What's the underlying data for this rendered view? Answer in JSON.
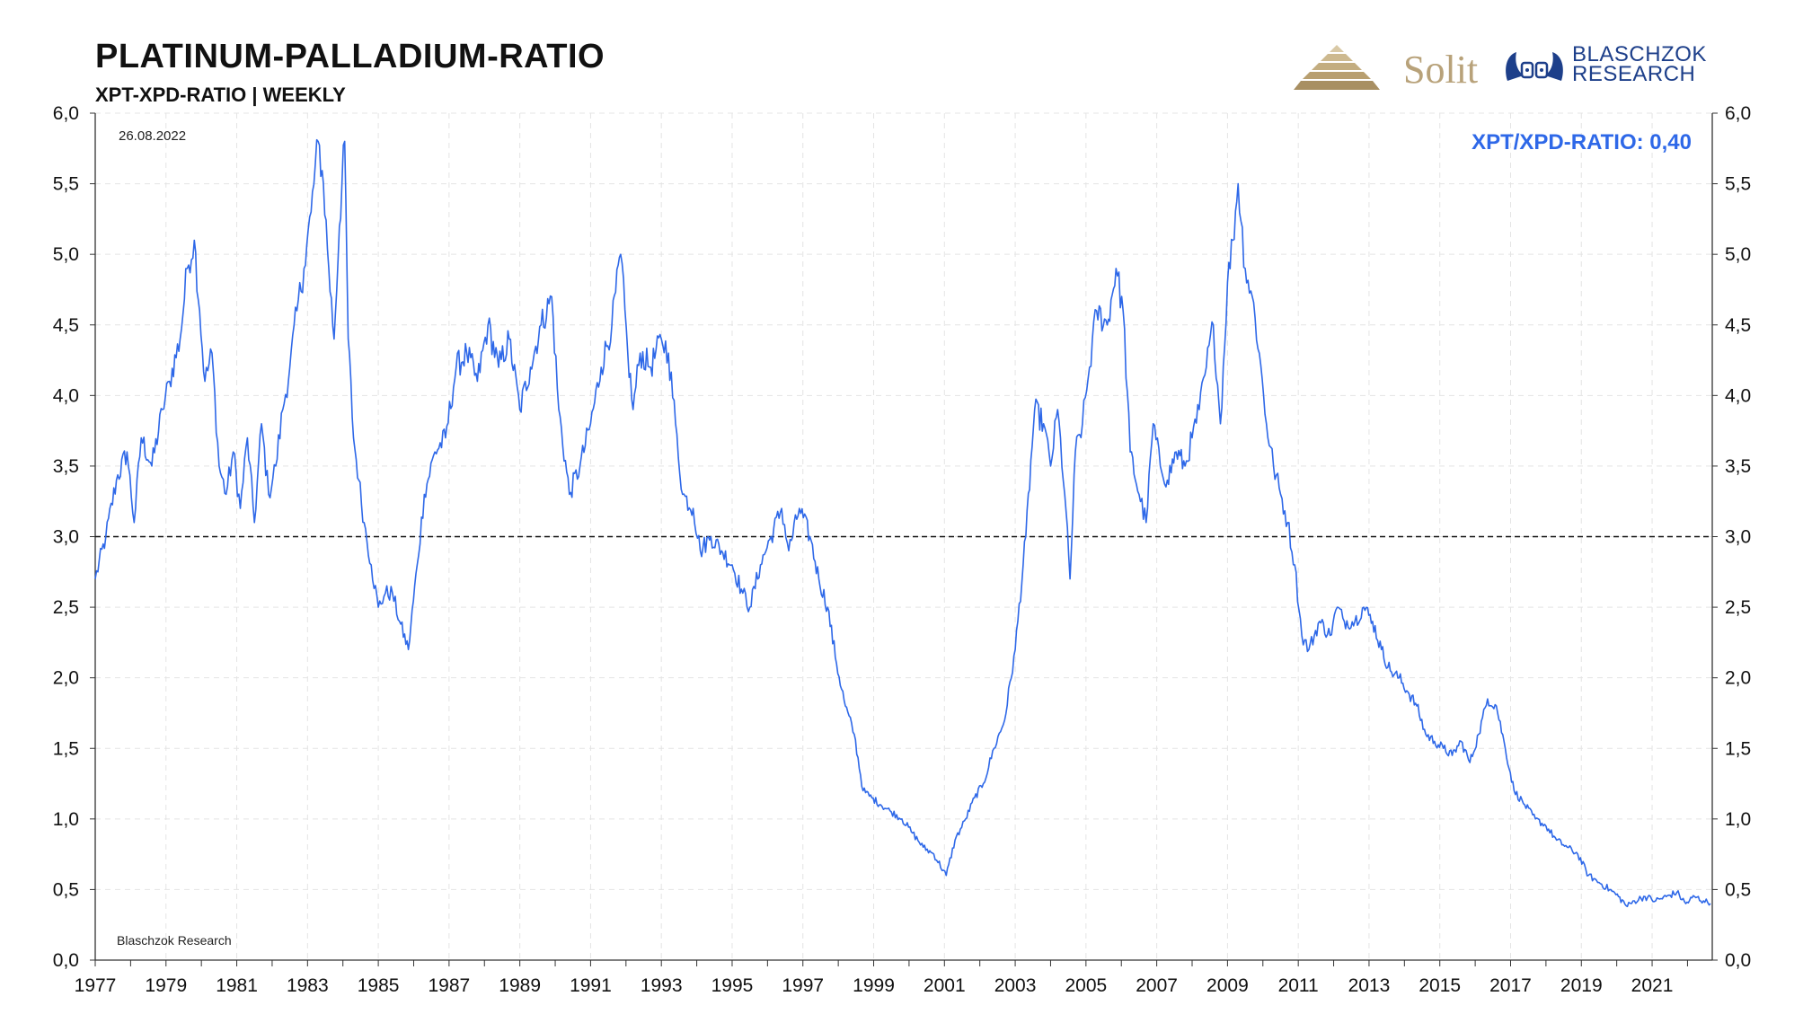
{
  "header": {
    "title": "PLATINUM-PALLADIUM-RATIO",
    "subtitle": "XPT-XPD-RATIO | WEEKLY"
  },
  "logos": {
    "solit": "Solit",
    "blaschzok_line1": "BLASCHZOK",
    "blaschzok_line2": "RESEARCH"
  },
  "annotations": {
    "date": "26.08.2022",
    "current_value": "XPT/XPD-RATIO: 0,40",
    "source": "Blaschzok Research"
  },
  "colors": {
    "line": "#2e68e8",
    "reference": "#111111",
    "grid": "#e4e4e4",
    "solit_gold": "#b8a27a",
    "blaschzok_blue": "#1d3f8a"
  },
  "chart_data": {
    "type": "line",
    "title": "PLATINUM-PALLADIUM-RATIO",
    "subtitle": "XPT-XPD-RATIO | WEEKLY",
    "xlabel": "",
    "ylabel": "",
    "xlim": [
      1977,
      2022.7
    ],
    "ylim": [
      0,
      6
    ],
    "y_ticks": [
      "0,0",
      "0,5",
      "1,0",
      "1,5",
      "2,0",
      "2,5",
      "3,0",
      "3,5",
      "4,0",
      "4,5",
      "5,0",
      "5,5",
      "6,0"
    ],
    "x_ticks": [
      "1977",
      "1979",
      "1981",
      "1983",
      "1985",
      "1987",
      "1989",
      "1991",
      "1993",
      "1995",
      "1997",
      "1999",
      "2001",
      "2003",
      "2005",
      "2007",
      "2009",
      "2011",
      "2013",
      "2015",
      "2017",
      "2019",
      "2021"
    ],
    "grid": true,
    "y_axis": "left-and-right",
    "reference_line": {
      "y": 3.0,
      "style": "dashed"
    },
    "series": [
      {
        "values": [
          [
            1977.0,
            2.7
          ],
          [
            1977.3,
            3.0
          ],
          [
            1977.6,
            3.4
          ],
          [
            1977.9,
            3.6
          ],
          [
            1978.1,
            3.1
          ],
          [
            1978.3,
            3.7
          ],
          [
            1978.6,
            3.5
          ],
          [
            1978.9,
            3.9
          ],
          [
            1979.1,
            4.1
          ],
          [
            1979.4,
            4.4
          ],
          [
            1979.6,
            4.9
          ],
          [
            1979.8,
            5.1
          ],
          [
            1979.95,
            4.6
          ],
          [
            1980.1,
            4.1
          ],
          [
            1980.3,
            4.3
          ],
          [
            1980.5,
            3.5
          ],
          [
            1980.7,
            3.3
          ],
          [
            1980.9,
            3.6
          ],
          [
            1981.1,
            3.2
          ],
          [
            1981.3,
            3.7
          ],
          [
            1981.5,
            3.1
          ],
          [
            1981.7,
            3.8
          ],
          [
            1981.9,
            3.3
          ],
          [
            1982.1,
            3.5
          ],
          [
            1982.3,
            3.9
          ],
          [
            1982.5,
            4.2
          ],
          [
            1982.7,
            4.6
          ],
          [
            1982.9,
            4.9
          ],
          [
            1983.1,
            5.3
          ],
          [
            1983.3,
            5.8
          ],
          [
            1983.45,
            5.5
          ],
          [
            1983.6,
            4.9
          ],
          [
            1983.75,
            4.4
          ],
          [
            1983.9,
            5.2
          ],
          [
            1984.05,
            5.8
          ],
          [
            1984.15,
            4.4
          ],
          [
            1984.3,
            3.7
          ],
          [
            1984.45,
            3.4
          ],
          [
            1984.6,
            3.1
          ],
          [
            1984.8,
            2.8
          ],
          [
            1985.0,
            2.5
          ],
          [
            1985.2,
            2.6
          ],
          [
            1985.4,
            2.6
          ],
          [
            1985.6,
            2.4
          ],
          [
            1985.85,
            2.2
          ],
          [
            1986.1,
            2.8
          ],
          [
            1986.3,
            3.3
          ],
          [
            1986.6,
            3.6
          ],
          [
            1986.9,
            3.7
          ],
          [
            1987.2,
            4.2
          ],
          [
            1987.5,
            4.3
          ],
          [
            1987.8,
            4.1
          ],
          [
            1988.1,
            4.5
          ],
          [
            1988.4,
            4.2
          ],
          [
            1988.7,
            4.4
          ],
          [
            1989.0,
            3.9
          ],
          [
            1989.3,
            4.2
          ],
          [
            1989.6,
            4.5
          ],
          [
            1989.9,
            4.7
          ],
          [
            1990.1,
            3.9
          ],
          [
            1990.4,
            3.3
          ],
          [
            1990.7,
            3.5
          ],
          [
            1991.0,
            3.8
          ],
          [
            1991.3,
            4.2
          ],
          [
            1991.6,
            4.5
          ],
          [
            1991.85,
            5.0
          ],
          [
            1992.05,
            4.3
          ],
          [
            1992.2,
            3.9
          ],
          [
            1992.4,
            4.3
          ],
          [
            1992.7,
            4.2
          ],
          [
            1993.0,
            4.4
          ],
          [
            1993.2,
            4.3
          ],
          [
            1993.4,
            3.8
          ],
          [
            1993.6,
            3.3
          ],
          [
            1993.9,
            3.2
          ],
          [
            1994.1,
            2.9
          ],
          [
            1994.4,
            3.0
          ],
          [
            1994.7,
            2.9
          ],
          [
            1995.0,
            2.8
          ],
          [
            1995.3,
            2.6
          ],
          [
            1995.5,
            2.5
          ],
          [
            1995.8,
            2.8
          ],
          [
            1996.1,
            3.0
          ],
          [
            1996.4,
            3.2
          ],
          [
            1996.6,
            2.9
          ],
          [
            1996.9,
            3.2
          ],
          [
            1997.2,
            3.0
          ],
          [
            1997.45,
            2.7
          ],
          [
            1997.7,
            2.5
          ],
          [
            1997.95,
            2.1
          ],
          [
            1998.2,
            1.8
          ],
          [
            1998.45,
            1.6
          ],
          [
            1998.7,
            1.2
          ],
          [
            1998.95,
            1.15
          ],
          [
            1999.2,
            1.1
          ],
          [
            1999.5,
            1.05
          ],
          [
            1999.8,
            1.0
          ],
          [
            2000.1,
            0.9
          ],
          [
            2000.4,
            0.8
          ],
          [
            2000.7,
            0.75
          ],
          [
            2001.05,
            0.6
          ],
          [
            2001.3,
            0.85
          ],
          [
            2001.6,
            1.0
          ],
          [
            2001.85,
            1.15
          ],
          [
            2002.1,
            1.25
          ],
          [
            2002.4,
            1.5
          ],
          [
            2002.7,
            1.7
          ],
          [
            2003.0,
            2.2
          ],
          [
            2003.3,
            3.0
          ],
          [
            2003.55,
            3.9
          ],
          [
            2003.8,
            3.8
          ],
          [
            2004.0,
            3.5
          ],
          [
            2004.2,
            3.9
          ],
          [
            2004.4,
            3.3
          ],
          [
            2004.55,
            2.7
          ],
          [
            2004.7,
            3.6
          ],
          [
            2004.9,
            3.8
          ],
          [
            2005.1,
            4.2
          ],
          [
            2005.3,
            4.6
          ],
          [
            2005.6,
            4.5
          ],
          [
            2005.85,
            4.9
          ],
          [
            2006.05,
            4.6
          ],
          [
            2006.25,
            3.6
          ],
          [
            2006.5,
            3.3
          ],
          [
            2006.7,
            3.1
          ],
          [
            2006.9,
            3.8
          ],
          [
            2007.1,
            3.5
          ],
          [
            2007.3,
            3.4
          ],
          [
            2007.55,
            3.6
          ],
          [
            2007.8,
            3.5
          ],
          [
            2008.0,
            3.7
          ],
          [
            2008.2,
            3.9
          ],
          [
            2008.4,
            4.2
          ],
          [
            2008.6,
            4.5
          ],
          [
            2008.8,
            3.8
          ],
          [
            2009.0,
            4.8
          ],
          [
            2009.15,
            5.1
          ],
          [
            2009.3,
            5.5
          ],
          [
            2009.5,
            4.9
          ],
          [
            2009.7,
            4.7
          ],
          [
            2009.9,
            4.3
          ],
          [
            2010.1,
            3.8
          ],
          [
            2010.3,
            3.5
          ],
          [
            2010.5,
            3.3
          ],
          [
            2010.7,
            3.1
          ],
          [
            2010.9,
            2.8
          ],
          [
            2011.1,
            2.3
          ],
          [
            2011.3,
            2.2
          ],
          [
            2011.6,
            2.4
          ],
          [
            2011.9,
            2.3
          ],
          [
            2012.1,
            2.5
          ],
          [
            2012.3,
            2.4
          ],
          [
            2012.6,
            2.4
          ],
          [
            2012.85,
            2.5
          ],
          [
            2013.1,
            2.4
          ],
          [
            2013.35,
            2.2
          ],
          [
            2013.6,
            2.05
          ],
          [
            2013.85,
            2.0
          ],
          [
            2014.1,
            1.9
          ],
          [
            2014.35,
            1.8
          ],
          [
            2014.6,
            1.6
          ],
          [
            2014.85,
            1.55
          ],
          [
            2015.1,
            1.5
          ],
          [
            2015.35,
            1.45
          ],
          [
            2015.6,
            1.55
          ],
          [
            2015.85,
            1.4
          ],
          [
            2016.1,
            1.6
          ],
          [
            2016.35,
            1.85
          ],
          [
            2016.6,
            1.8
          ],
          [
            2016.85,
            1.5
          ],
          [
            2017.1,
            1.2
          ],
          [
            2017.4,
            1.1
          ],
          [
            2017.7,
            1.0
          ],
          [
            2018.0,
            0.95
          ],
          [
            2018.3,
            0.85
          ],
          [
            2018.6,
            0.8
          ],
          [
            2018.9,
            0.75
          ],
          [
            2019.2,
            0.6
          ],
          [
            2019.5,
            0.55
          ],
          [
            2019.8,
            0.5
          ],
          [
            2020.05,
            0.45
          ],
          [
            2020.3,
            0.38
          ],
          [
            2020.5,
            0.42
          ],
          [
            2020.8,
            0.45
          ],
          [
            2021.1,
            0.42
          ],
          [
            2021.4,
            0.45
          ],
          [
            2021.7,
            0.48
          ],
          [
            2021.95,
            0.4
          ],
          [
            2022.2,
            0.45
          ],
          [
            2022.45,
            0.42
          ],
          [
            2022.65,
            0.4
          ]
        ]
      }
    ]
  }
}
